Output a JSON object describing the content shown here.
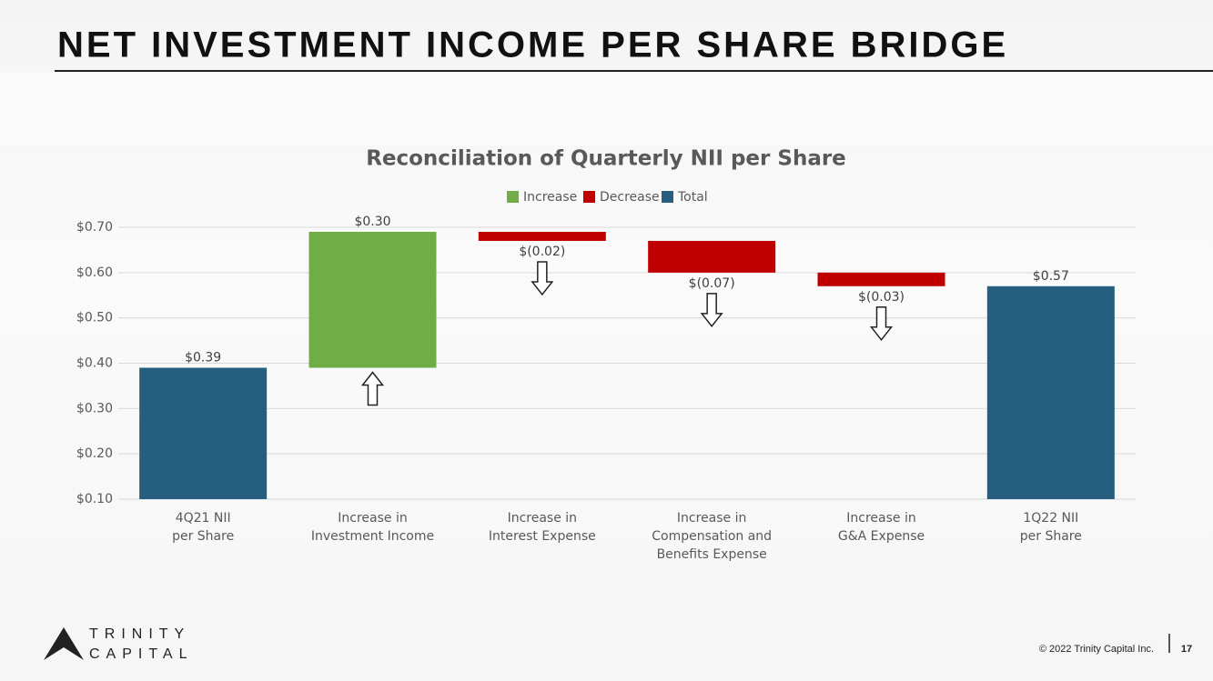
{
  "header": {
    "title": "NET INVESTMENT INCOME PER SHARE BRIDGE"
  },
  "chart_data": {
    "type": "waterfall",
    "title": "Reconciliation of Quarterly NII per Share",
    "categories": [
      "4Q21 NII\nper Share",
      "Increase in\nInvestment Income",
      "Increase in\nInterest Expense",
      "Increase in\nCompensation and\nBenefits Expense",
      "Increase in\nG&A Expense",
      "1Q22 NII\nper Share"
    ],
    "series": [
      {
        "name": "Increase",
        "kind": "increase",
        "color": "#70ad47",
        "values": [
          null,
          0.3,
          null,
          null,
          null,
          null
        ],
        "value_labels": [
          null,
          "$0.30",
          null,
          null,
          null,
          null
        ]
      },
      {
        "name": "Decrease",
        "kind": "decrease",
        "color": "#c00000",
        "values": [
          null,
          null,
          -0.02,
          -0.07,
          -0.03,
          null
        ],
        "value_labels": [
          null,
          null,
          "$(0.02)",
          "$(0.07)",
          "$(0.03)",
          null
        ]
      },
      {
        "name": "Total",
        "kind": "total",
        "color": "#255e7e",
        "values": [
          0.39,
          null,
          null,
          null,
          null,
          0.57
        ],
        "value_labels": [
          "$0.39",
          null,
          null,
          null,
          null,
          "$0.57"
        ]
      }
    ],
    "ylim": [
      0.1,
      0.7
    ],
    "yticks": [
      {
        "value": 0.1,
        "label": "$0.10"
      },
      {
        "value": 0.2,
        "label": "$0.20"
      },
      {
        "value": 0.3,
        "label": "$0.30"
      },
      {
        "value": 0.4,
        "label": "$0.40"
      },
      {
        "value": 0.5,
        "label": "$0.50"
      },
      {
        "value": 0.6,
        "label": "$0.60"
      },
      {
        "value": 0.7,
        "label": "$0.70"
      }
    ],
    "grid": true,
    "legend": "top"
  },
  "footer": {
    "copyright": "© 2022 Trinity Capital Inc.",
    "page": "17",
    "logo": [
      "TRINITY",
      "CAPITAL"
    ]
  }
}
